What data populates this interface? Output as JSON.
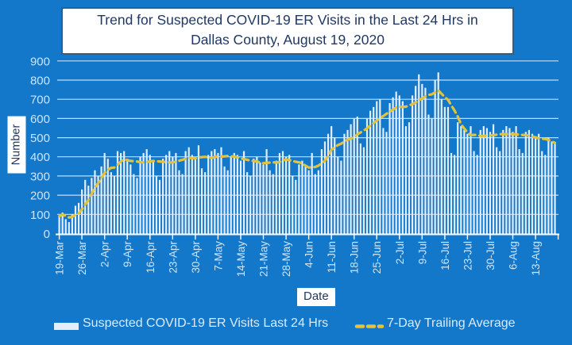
{
  "title": {
    "line1": "Trend for Suspected COVID-19 ER Visits in the Last 24 Hrs in",
    "line2": "Dallas County, August 19, 2020"
  },
  "axes": {
    "ylabel": "Number",
    "xlabel": "Date"
  },
  "legend": [
    {
      "label": "Suspected COVID-19 ER Visits Last 24 Hrs",
      "swatch": "bar",
      "color": "#e3eefa"
    },
    {
      "label": "7-Day Trailing Average",
      "swatch": "dashed-line",
      "color": "#e2c33d"
    }
  ],
  "colors": {
    "background": "#1377ca",
    "bar": "#e3eefa",
    "average_line": "#e2c33d",
    "grid": "rgba(255,255,255,0.75)",
    "axis": "#ffffff",
    "tick_label": "#cfe4f7",
    "legend_text": "#dcebfa",
    "dark_text": "#1f3864",
    "title_border": "#2f5d8c"
  },
  "chart_data": {
    "type": "bar",
    "title": "Trend for Suspected COVID-19 ER Visits in the Last 24 Hrs in Dallas County, August 19, 2020",
    "xlabel": "Date",
    "ylabel": "Number",
    "ylim": [
      0,
      900
    ],
    "grid": true,
    "legend_position": "bottom",
    "y_ticks": [
      0,
      100,
      200,
      300,
      400,
      500,
      600,
      700,
      800,
      900
    ],
    "x_tick_labels": [
      "19-Mar",
      "26-Mar",
      "2-Apr",
      "9-Apr",
      "16-Apr",
      "23-Apr",
      "30-Apr",
      "7-May",
      "14-May",
      "21-May",
      "28-May",
      "4-Jun",
      "11-Jun",
      "18-Jun",
      "25-Jun",
      "2-Jul",
      "9-Jul",
      "16-Jul",
      "23-Jul",
      "30-Jul",
      "6-Aug",
      "13-Aug"
    ],
    "days_per_tick": 7,
    "series": [
      {
        "name": "Suspected COVID-19 ER Visits Last 24 Hrs",
        "type": "bar",
        "values": [
          90,
          110,
          75,
          60,
          100,
          145,
          160,
          230,
          280,
          250,
          290,
          330,
          300,
          350,
          420,
          390,
          320,
          300,
          430,
          420,
          430,
          390,
          360,
          310,
          290,
          400,
          420,
          440,
          410,
          380,
          300,
          280,
          390,
          410,
          430,
          400,
          420,
          330,
          310,
          430,
          450,
          410,
          390,
          460,
          340,
          320,
          410,
          430,
          440,
          420,
          450,
          350,
          330,
          400,
          420,
          410,
          380,
          430,
          320,
          300,
          390,
          400,
          370,
          360,
          440,
          330,
          310,
          380,
          420,
          430,
          400,
          410,
          300,
          280,
          360,
          380,
          350,
          330,
          420,
          310,
          330,
          440,
          480,
          520,
          560,
          500,
          400,
          380,
          520,
          540,
          570,
          600,
          610,
          470,
          450,
          600,
          640,
          660,
          690,
          700,
          550,
          530,
          680,
          710,
          740,
          720,
          690,
          560,
          580,
          720,
          770,
          830,
          780,
          760,
          620,
          600,
          800,
          840,
          700,
          660,
          660,
          420,
          410,
          580,
          560,
          540,
          520,
          560,
          430,
          410,
          540,
          560,
          550,
          530,
          570,
          450,
          430,
          540,
          560,
          550,
          530,
          560,
          440,
          420,
          530,
          540,
          520,
          500,
          520,
          430,
          410,
          500,
          480,
          470
        ]
      },
      {
        "name": "7-Day Trailing Average",
        "type": "line",
        "derived_from": "trailing 7-day mean of the bar series"
      }
    ]
  }
}
